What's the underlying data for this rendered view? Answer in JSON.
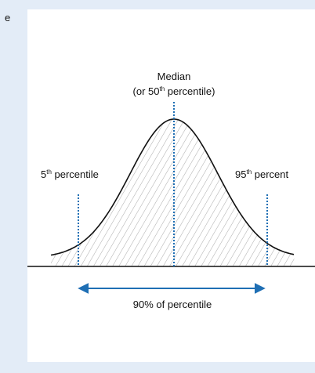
{
  "edge_text": "e",
  "labels": {
    "median": {
      "title": "Median",
      "pre": "(or 50",
      "sup": "th",
      "post": " percentile)"
    },
    "low": {
      "base": "5",
      "sup": "th",
      "post": " percentile"
    },
    "high": {
      "base": "95",
      "sup": "th",
      "post": " percent"
    },
    "range": "90% of percentile"
  }
}
